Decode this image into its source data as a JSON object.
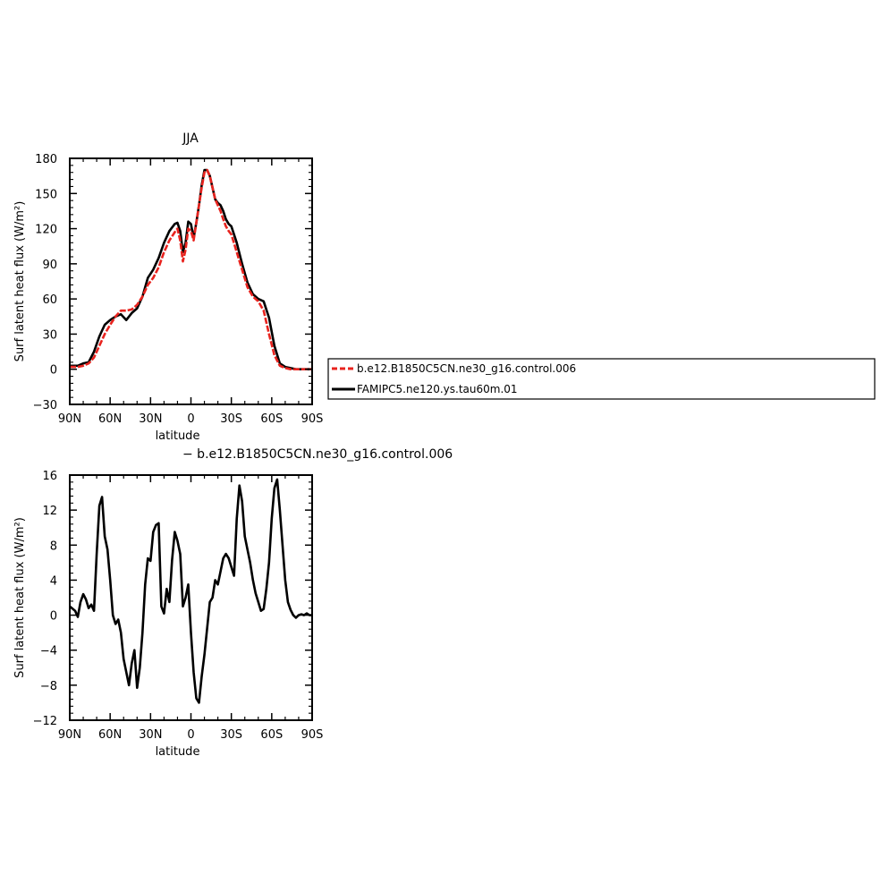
{
  "chart_data": [
    {
      "type": "line",
      "title": "JJA",
      "xlabel": "latitude",
      "ylabel": "Surf latent heat flux (W/m²)",
      "xlim": [
        90,
        -90
      ],
      "ylim": [
        -30,
        180
      ],
      "xticks": [
        90,
        60,
        30,
        0,
        -30,
        -60,
        -90
      ],
      "xtick_labels": [
        "90N",
        "60N",
        "30N",
        "0",
        "30S",
        "60S",
        "90S"
      ],
      "yticks": [
        -30,
        0,
        30,
        60,
        90,
        120,
        150,
        180
      ],
      "ytick_labels": [
        "−30",
        "0",
        "30",
        "60",
        "90",
        "120",
        "150",
        "180"
      ],
      "legend": {
        "placement": "right",
        "entries": [
          "b.e12.B1850C5CN.ne30_g16.control.006",
          "FAMIPC5.ne120.ys.tau60m.01"
        ]
      },
      "series": [
        {
          "name": "b.e12.B1850C5CN.ne30_g16.control.006",
          "color": "#e8231e",
          "dash": "dashed",
          "x": [
            90,
            84,
            80,
            76,
            72,
            68,
            64,
            60,
            56,
            52,
            48,
            44,
            40,
            36,
            32,
            28,
            24,
            20,
            16,
            12,
            10,
            8,
            6,
            4,
            2,
            0,
            -2,
            -4,
            -6,
            -8,
            -10,
            -12,
            -14,
            -16,
            -18,
            -20,
            -22,
            -24,
            -26,
            -28,
            -30,
            -34,
            -38,
            -42,
            -46,
            -50,
            -54,
            -58,
            -62,
            -66,
            -70,
            -74,
            -78,
            -82,
            -86,
            -90
          ],
          "y": [
            2,
            2,
            3,
            5,
            10,
            20,
            30,
            38,
            45,
            50,
            50,
            51,
            55,
            62,
            72,
            78,
            87,
            100,
            110,
            117,
            120,
            110,
            92,
            102,
            120,
            118,
            110,
            125,
            140,
            155,
            168,
            170,
            165,
            155,
            145,
            140,
            135,
            128,
            122,
            118,
            115,
            100,
            85,
            70,
            62,
            58,
            50,
            30,
            12,
            3,
            1,
            0,
            0,
            0,
            0,
            0
          ]
        },
        {
          "name": "FAMIPC5.ne120.ys.tau60m.01",
          "color": "#000000",
          "dash": "solid",
          "x": [
            90,
            84,
            80,
            76,
            72,
            68,
            64,
            60,
            56,
            52,
            48,
            44,
            40,
            36,
            32,
            28,
            24,
            20,
            16,
            12,
            10,
            8,
            6,
            4,
            2,
            0,
            -2,
            -4,
            -6,
            -8,
            -10,
            -12,
            -14,
            -16,
            -18,
            -20,
            -22,
            -24,
            -26,
            -28,
            -30,
            -34,
            -38,
            -42,
            -46,
            -50,
            -54,
            -58,
            -62,
            -66,
            -70,
            -74,
            -78,
            -82,
            -86,
            -90
          ],
          "y": [
            3,
            3,
            5,
            6,
            15,
            28,
            38,
            42,
            45,
            47,
            42,
            48,
            52,
            62,
            78,
            85,
            95,
            108,
            118,
            124,
            125,
            118,
            100,
            108,
            126,
            124,
            112,
            125,
            140,
            157,
            170,
            170,
            165,
            155,
            145,
            142,
            140,
            135,
            128,
            124,
            122,
            108,
            90,
            74,
            64,
            60,
            58,
            44,
            20,
            5,
            2,
            1,
            0,
            0,
            0,
            0
          ]
        }
      ]
    },
    {
      "type": "line",
      "title": "− b.e12.B1850C5CN.ne30_g16.control.006",
      "xlabel": "latitude",
      "ylabel": "Surf latent heat flux (W/m²)",
      "xlim": [
        90,
        -90
      ],
      "ylim": [
        -12,
        16
      ],
      "xticks": [
        90,
        60,
        30,
        0,
        -30,
        -60,
        -90
      ],
      "xtick_labels": [
        "90N",
        "60N",
        "30N",
        "0",
        "30S",
        "60S",
        "90S"
      ],
      "yticks": [
        -12,
        -8,
        -4,
        0,
        4,
        8,
        12,
        16
      ],
      "ytick_labels": [
        "−12",
        "−8",
        "−4",
        "0",
        "4",
        "8",
        "12",
        "16"
      ],
      "series": [
        {
          "color": "#000000",
          "dash": "solid",
          "x": [
            90,
            86,
            84,
            82,
            80,
            78,
            76,
            74,
            72,
            70,
            68,
            66,
            64,
            62,
            60,
            58,
            56,
            54,
            52,
            50,
            48,
            46,
            44,
            42,
            40,
            38,
            36,
            34,
            32,
            30,
            28,
            26,
            24,
            22,
            20,
            18,
            16,
            14,
            12,
            10,
            8,
            6,
            4,
            2,
            0,
            -2,
            -4,
            -6,
            -8,
            -10,
            -12,
            -14,
            -16,
            -18,
            -20,
            -22,
            -24,
            -26,
            -28,
            -30,
            -32,
            -34,
            -36,
            -38,
            -40,
            -42,
            -44,
            -46,
            -48,
            -50,
            -52,
            -54,
            -56,
            -58,
            -60,
            -62,
            -64,
            -66,
            -68,
            -70,
            -72,
            -74,
            -76,
            -78,
            -80,
            -82,
            -84,
            -86,
            -88,
            -90
          ],
          "y": [
            1,
            0.5,
            -0.2,
            1.5,
            2.4,
            1.8,
            0.8,
            1.2,
            0.5,
            7,
            12.5,
            13.5,
            9,
            7.5,
            4,
            0,
            -1,
            -0.5,
            -2,
            -5,
            -6.5,
            -8,
            -5.5,
            -4,
            -8.3,
            -6,
            -2,
            3.5,
            6.5,
            6.2,
            9.5,
            10.3,
            10.5,
            1,
            0.2,
            3,
            1.5,
            6.3,
            9.5,
            8.5,
            7,
            1,
            2,
            3.5,
            -2,
            -6.5,
            -9.5,
            -10,
            -7,
            -4.5,
            -1.5,
            1.5,
            2,
            4,
            3.5,
            5,
            6.5,
            7,
            6.5,
            5.5,
            4.5,
            11,
            14.8,
            13,
            9,
            7.5,
            6,
            4,
            2.5,
            1.5,
            0.5,
            0.7,
            3,
            6,
            11,
            14.5,
            15.5,
            12,
            8,
            4,
            1.5,
            0.6,
            0,
            -0.3,
            0,
            0.1,
            0,
            0.2,
            0,
            0
          ]
        }
      ]
    }
  ]
}
